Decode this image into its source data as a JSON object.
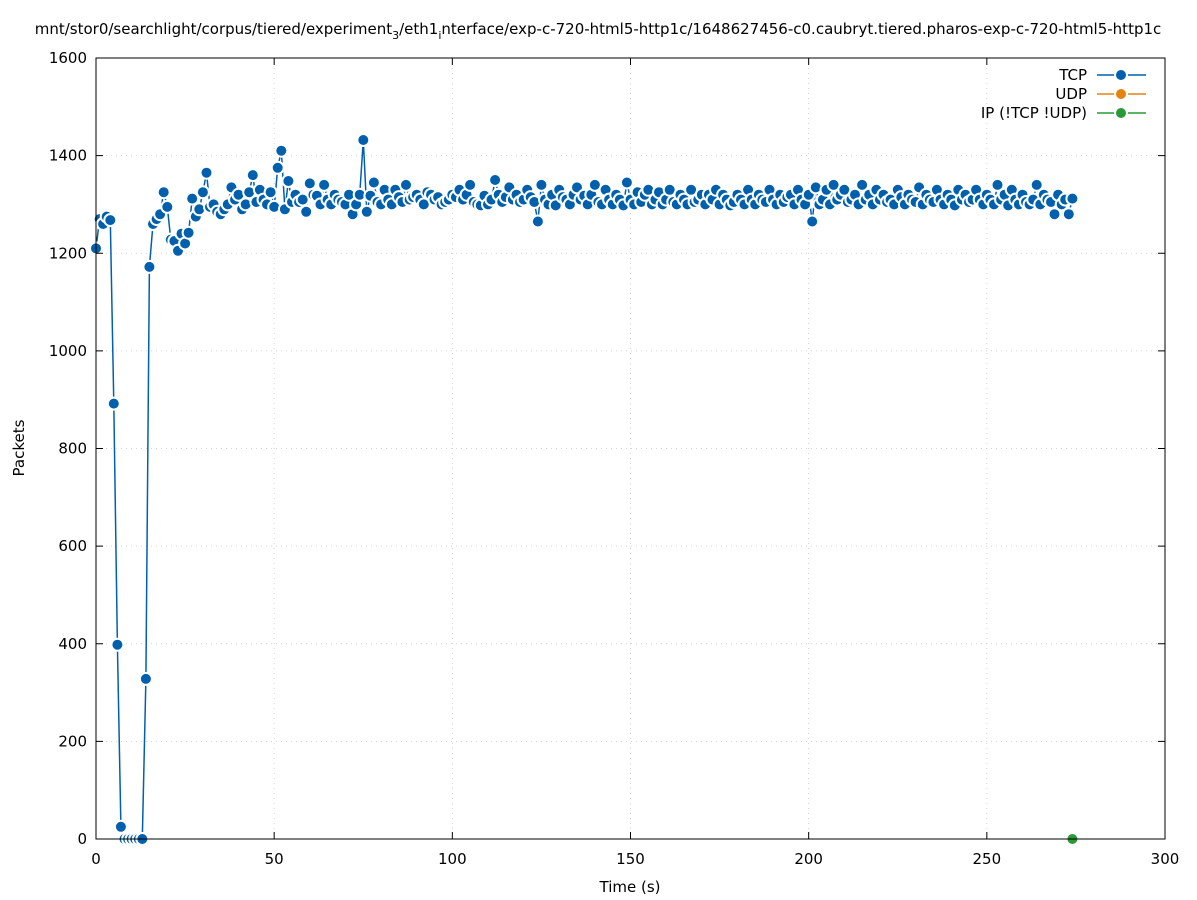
{
  "chart_data": {
    "type": "line",
    "title_parts": {
      "main": "mnt/stor0/searchlight/corpus/tiered/experiment",
      "sub1": "3",
      "mid": "/eth1",
      "sub2": "i",
      "rest": "nterface/exp-c-720-html5-http1c/1648627456-c0.caubryt.tiered.pharos-exp-c-720-html5-http1c"
    },
    "xlabel": "Time (s)",
    "ylabel": "Packets",
    "xlim": [
      0,
      300
    ],
    "ylim": [
      0,
      1600
    ],
    "xticks": [
      "0",
      "50",
      "100",
      "150",
      "200",
      "250",
      "300"
    ],
    "yticks": [
      "0",
      "200",
      "400",
      "600",
      "800",
      "1000",
      "1200",
      "1400",
      "1600"
    ],
    "grid": true,
    "legend_position": "top-right",
    "series": [
      {
        "name": "TCP",
        "color": "#0060ad",
        "x": [
          0,
          1,
          2,
          3,
          4,
          5,
          6,
          7,
          8,
          9,
          10,
          11,
          12,
          13,
          14,
          15,
          16,
          17,
          18,
          19,
          20,
          21,
          22,
          23,
          24,
          25,
          26,
          27,
          28,
          29,
          30,
          31,
          32,
          33,
          34,
          35,
          36,
          37,
          38,
          39,
          40,
          41,
          42,
          43,
          44,
          45,
          46,
          47,
          48,
          49,
          50,
          51,
          52,
          53,
          54,
          55,
          56,
          57,
          58,
          59,
          60,
          61,
          62,
          63,
          64,
          65,
          66,
          67,
          68,
          69,
          70,
          71,
          72,
          73,
          74,
          75,
          76,
          77,
          78,
          79,
          80,
          81,
          82,
          83,
          84,
          85,
          86,
          87,
          88,
          89,
          90,
          91,
          92,
          93,
          94,
          95,
          96,
          97,
          98,
          99,
          100,
          101,
          102,
          103,
          104,
          105,
          106,
          107,
          108,
          109,
          110,
          111,
          112,
          113,
          114,
          115,
          116,
          117,
          118,
          119,
          120,
          121,
          122,
          123,
          124,
          125,
          126,
          127,
          128,
          129,
          130,
          131,
          132,
          133,
          134,
          135,
          136,
          137,
          138,
          139,
          140,
          141,
          142,
          143,
          144,
          145,
          146,
          147,
          148,
          149,
          150,
          151,
          152,
          153,
          154,
          155,
          156,
          157,
          158,
          159,
          160,
          161,
          162,
          163,
          164,
          165,
          166,
          167,
          168,
          169,
          170,
          171,
          172,
          173,
          174,
          175,
          176,
          177,
          178,
          179,
          180,
          181,
          182,
          183,
          184,
          185,
          186,
          187,
          188,
          189,
          190,
          191,
          192,
          193,
          194,
          195,
          196,
          197,
          198,
          199,
          200,
          201,
          202,
          203,
          204,
          205,
          206,
          207,
          208,
          209,
          210,
          211,
          212,
          213,
          214,
          215,
          216,
          217,
          218,
          219,
          220,
          221,
          222,
          223,
          224,
          225,
          226,
          227,
          228,
          229,
          230,
          231,
          232,
          233,
          234,
          235,
          236,
          237,
          238,
          239,
          240,
          241,
          242,
          243,
          244,
          245,
          246,
          247,
          248,
          249,
          250,
          251,
          252,
          253,
          254,
          255,
          256,
          257,
          258,
          259,
          260,
          261,
          262,
          263,
          264,
          265,
          266,
          267,
          268,
          269,
          270,
          271,
          272,
          273,
          274
        ],
        "values": [
          1210,
          1270,
          1260,
          1275,
          1268,
          892,
          398,
          25,
          0,
          0,
          0,
          0,
          0,
          0,
          328,
          1172,
          1260,
          1270,
          1280,
          1325,
          1295,
          1228,
          1225,
          1205,
          1240,
          1220,
          1242,
          1312,
          1275,
          1290,
          1325,
          1365,
          1295,
          1300,
          1285,
          1280,
          1290,
          1300,
          1335,
          1310,
          1320,
          1290,
          1300,
          1325,
          1360,
          1305,
          1330,
          1310,
          1300,
          1325,
          1295,
          1375,
          1410,
          1290,
          1348,
          1305,
          1320,
          1305,
          1310,
          1285,
          1343,
          1320,
          1318,
          1300,
          1340,
          1310,
          1300,
          1320,
          1310,
          1305,
          1300,
          1320,
          1280,
          1300,
          1320,
          1432,
          1285,
          1318,
          1345,
          1305,
          1300,
          1330,
          1310,
          1300,
          1330,
          1315,
          1305,
          1340,
          1310,
          1315,
          1320,
          1310,
          1300,
          1325,
          1320,
          1310,
          1315,
          1300,
          1305,
          1310,
          1320,
          1315,
          1330,
          1310,
          1320,
          1340,
          1305,
          1300,
          1298,
          1318,
          1300,
          1310,
          1350,
          1320,
          1305,
          1315,
          1335,
          1310,
          1320,
          1305,
          1310,
          1330,
          1315,
          1305,
          1265,
          1340,
          1310,
          1300,
          1320,
          1298,
          1330,
          1315,
          1310,
          1300,
          1320,
          1335,
          1310,
          1318,
          1300,
          1320,
          1340,
          1305,
          1300,
          1330,
          1310,
          1300,
          1320,
          1310,
          1298,
          1345,
          1310,
          1300,
          1325,
          1305,
          1320,
          1330,
          1300,
          1310,
          1325,
          1300,
          1310,
          1330,
          1305,
          1300,
          1320,
          1310,
          1300,
          1330,
          1305,
          1310,
          1320,
          1300,
          1320,
          1310,
          1330,
          1300,
          1320,
          1310,
          1298,
          1305,
          1320,
          1310,
          1300,
          1330,
          1310,
          1300,
          1320,
          1310,
          1305,
          1330,
          1310,
          1300,
          1320,
          1305,
          1315,
          1320,
          1300,
          1330,
          1310,
          1300,
          1320,
          1265,
          1335,
          1300,
          1310,
          1330,
          1300,
          1340,
          1310,
          1320,
          1330,
          1305,
          1310,
          1320,
          1300,
          1340,
          1310,
          1320,
          1300,
          1330,
          1310,
          1320,
          1305,
          1310,
          1300,
          1330,
          1315,
          1300,
          1320,
          1310,
          1305,
          1335,
          1300,
          1320,
          1310,
          1305,
          1330,
          1310,
          1300,
          1320,
          1310,
          1298,
          1330,
          1310,
          1320,
          1305,
          1310,
          1330,
          1310,
          1300,
          1320,
          1310,
          1300,
          1340,
          1310,
          1320,
          1298,
          1330,
          1310,
          1300,
          1320,
          1305,
          1300,
          1310,
          1340,
          1300,
          1320,
          1310,
          1305,
          1280,
          1320,
          1300,
          1310,
          1280,
          1312
        ]
      },
      {
        "name": "UDP",
        "color": "#e6830f",
        "x": [],
        "values": []
      },
      {
        "name": "IP (!TCP  !UDP)",
        "color": "#2a9a37",
        "x": [
          274
        ],
        "values": [
          0
        ]
      }
    ]
  }
}
